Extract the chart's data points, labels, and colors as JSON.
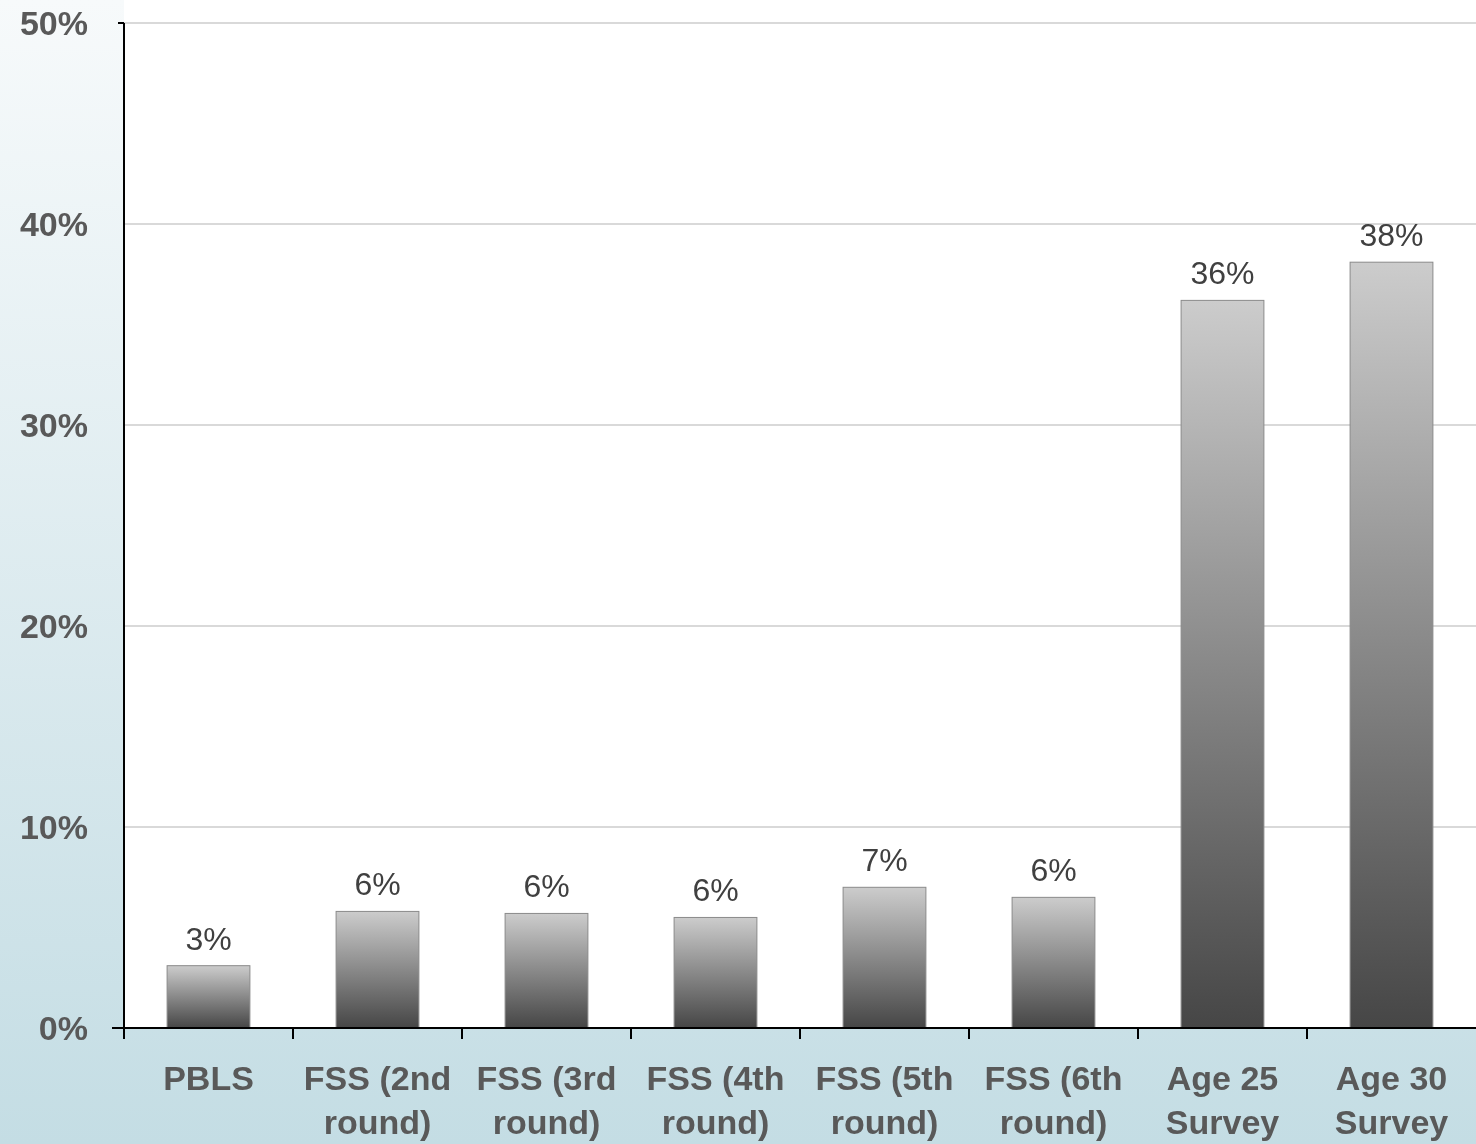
{
  "chart_data": {
    "type": "bar",
    "categories": [
      "PBLS",
      "FSS (2nd round)",
      "FSS (3rd round)",
      "FSS (4th round)",
      "FSS (5th round)",
      "FSS (6th round)",
      "Age 25 Survey",
      "Age 30 Survey"
    ],
    "values": [
      3.1,
      5.8,
      5.7,
      5.5,
      7.0,
      6.5,
      36.2,
      38.1
    ],
    "value_labels": [
      "3%",
      "6%",
      "6%",
      "6%",
      "7%",
      "6%",
      "36%",
      "38%"
    ],
    "color": "#808080",
    "ylim": [
      0,
      50
    ],
    "yticks": [
      {
        "value": 0,
        "label": "0%"
      },
      {
        "value": 10,
        "label": "10%"
      },
      {
        "value": 20,
        "label": "20%"
      },
      {
        "value": 30,
        "label": "30%"
      },
      {
        "value": 40,
        "label": "40%"
      },
      {
        "value": 50,
        "label": "50%"
      }
    ],
    "grid": "y"
  }
}
